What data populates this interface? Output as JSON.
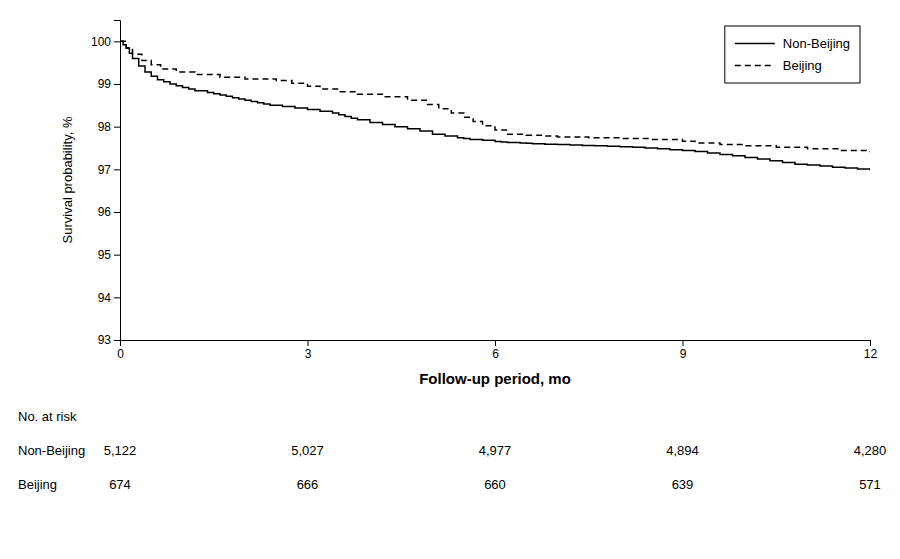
{
  "chart_data": {
    "type": "step",
    "xlabel": "Follow-up period, mo",
    "ylabel": "Survival probability, %",
    "xlim": [
      0,
      12
    ],
    "ylim": [
      93,
      100.5
    ],
    "xticks": [
      0,
      3,
      6,
      9,
      12
    ],
    "yticks": [
      93,
      94,
      95,
      96,
      97,
      98,
      99,
      100
    ],
    "grid": false,
    "legend": "upper right",
    "series": [
      {
        "name": "Non-Beijing",
        "color": "#000000",
        "line_style": "solid",
        "x": [
          0,
          0.05,
          0.1,
          0.15,
          0.2,
          0.3,
          0.4,
          0.5,
          0.6,
          0.7,
          0.8,
          0.9,
          1.0,
          1.1,
          1.2,
          1.4,
          1.5,
          1.6,
          1.7,
          1.8,
          1.9,
          2.0,
          2.1,
          2.2,
          2.3,
          2.4,
          2.6,
          2.8,
          3.0,
          3.2,
          3.4,
          3.5,
          3.6,
          3.7,
          3.8,
          4.0,
          4.2,
          4.4,
          4.6,
          4.8,
          5.0,
          5.2,
          5.4,
          5.5,
          5.6,
          5.8,
          6.0,
          6.1,
          6.2,
          6.4,
          6.5,
          6.6,
          6.8,
          7.0,
          7.2,
          7.4,
          7.6,
          7.8,
          8.0,
          8.2,
          8.4,
          8.6,
          8.8,
          9.0,
          9.2,
          9.4,
          9.6,
          9.8,
          10.0,
          10.2,
          10.4,
          10.6,
          10.8,
          11.0,
          11.2,
          11.4,
          11.6,
          11.8,
          12.0
        ],
        "values": [
          100.0,
          99.92,
          99.84,
          99.72,
          99.6,
          99.42,
          99.28,
          99.18,
          99.1,
          99.05,
          99.0,
          98.96,
          98.92,
          98.88,
          98.84,
          98.8,
          98.77,
          98.74,
          98.71,
          98.68,
          98.65,
          98.62,
          98.59,
          98.56,
          98.53,
          98.5,
          98.47,
          98.44,
          98.4,
          98.36,
          98.32,
          98.28,
          98.24,
          98.2,
          98.16,
          98.1,
          98.05,
          98.0,
          97.95,
          97.9,
          97.82,
          97.78,
          97.74,
          97.72,
          97.7,
          97.68,
          97.65,
          97.64,
          97.63,
          97.62,
          97.61,
          97.6,
          97.59,
          97.58,
          97.57,
          97.56,
          97.55,
          97.54,
          97.53,
          97.52,
          97.5,
          97.48,
          97.46,
          97.44,
          97.42,
          97.38,
          97.35,
          97.32,
          97.28,
          97.24,
          97.2,
          97.16,
          97.12,
          97.1,
          97.08,
          97.05,
          97.03,
          97.01,
          96.98
        ]
      },
      {
        "name": "Beijing",
        "color": "#000000",
        "line_style": "dashed",
        "x": [
          0,
          0.1,
          0.2,
          0.35,
          0.5,
          0.65,
          0.9,
          1.2,
          1.6,
          2.0,
          2.5,
          2.75,
          3.0,
          3.2,
          3.5,
          3.8,
          4.2,
          4.6,
          4.9,
          5.1,
          5.3,
          5.5,
          5.65,
          5.8,
          6.0,
          6.2,
          6.5,
          6.8,
          7.0,
          7.5,
          8.0,
          8.5,
          9.0,
          9.2,
          9.6,
          10.0,
          10.5,
          11.0,
          11.5,
          12.0
        ],
        "values": [
          100.0,
          99.85,
          99.7,
          99.55,
          99.45,
          99.35,
          99.28,
          99.22,
          99.16,
          99.12,
          99.08,
          99.02,
          98.95,
          98.88,
          98.82,
          98.76,
          98.7,
          98.62,
          98.52,
          98.42,
          98.32,
          98.22,
          98.12,
          98.02,
          97.92,
          97.82,
          97.8,
          97.78,
          97.76,
          97.74,
          97.72,
          97.7,
          97.66,
          97.62,
          97.58,
          97.55,
          97.52,
          97.48,
          97.44,
          97.4
        ]
      }
    ],
    "risk_table": {
      "label": "No. at risk",
      "x": [
        0,
        3,
        6,
        9,
        12
      ],
      "rows": [
        {
          "name": "Non-Beijing",
          "values": [
            5122,
            5027,
            4977,
            4894,
            4280
          ],
          "value_labels": [
            "5,122",
            "5,027",
            "4,977",
            "4,894",
            "4,280"
          ]
        },
        {
          "name": "Beijing",
          "values": [
            674,
            666,
            660,
            639,
            571
          ],
          "value_labels": [
            "674",
            "666",
            "660",
            "639",
            "571"
          ]
        }
      ]
    }
  }
}
